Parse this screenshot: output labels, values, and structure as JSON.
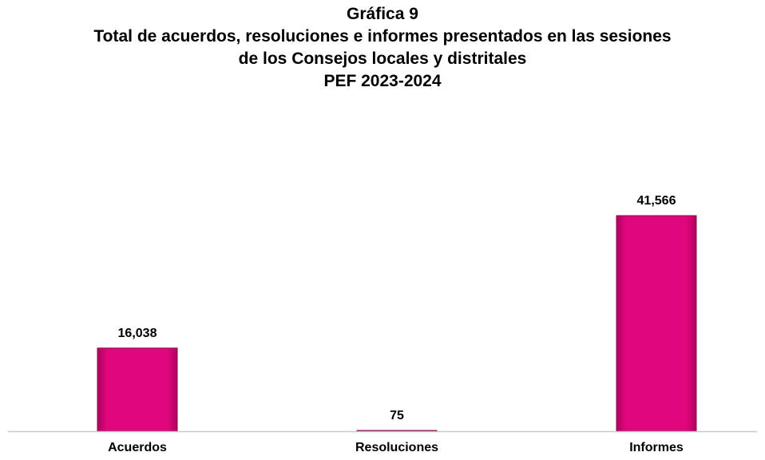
{
  "chart_data": {
    "type": "bar",
    "title_lines": [
      "Gráfica 9",
      "Total de acuerdos, resoluciones e informes presentados en las sesiones",
      "de los Consejos locales y distritales",
      "PEF 2023-2024"
    ],
    "categories": [
      "Acuerdos",
      "Resoluciones",
      "Informes"
    ],
    "values": [
      16038,
      75,
      41566
    ],
    "data_labels": [
      "16,038",
      "75",
      "41,566"
    ],
    "xlabel": "",
    "ylabel": "",
    "ylim": [
      0,
      41566
    ],
    "grid": false,
    "legend": "none",
    "bar_color": "#e0077d",
    "bar_edge_color": "#8a0a4d",
    "axis_color": "#c8c8c8"
  }
}
